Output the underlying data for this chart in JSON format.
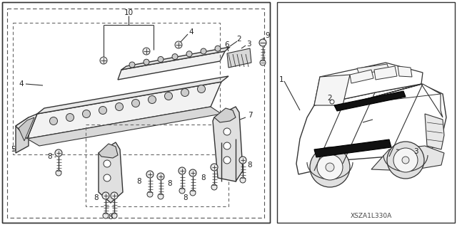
{
  "background_color": "#ffffff",
  "line_color": "#333333",
  "diagram_code": "XSZA1L330A",
  "fig_width": 6.4,
  "fig_height": 3.19,
  "dpi": 100,
  "font_size": 7.5,
  "label_color": "#222222"
}
